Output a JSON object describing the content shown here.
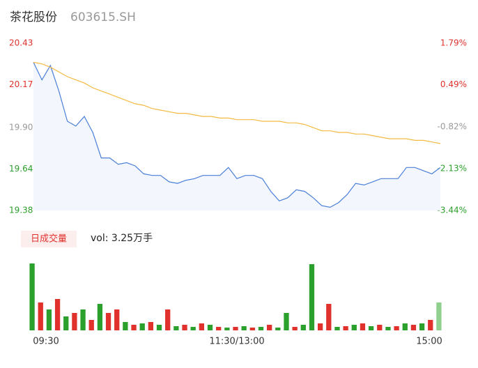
{
  "header": {
    "name": "茶花股份",
    "code": "603615.SH"
  },
  "chart_data": [
    {
      "type": "line",
      "x": [
        0,
        5,
        10,
        15,
        20,
        25,
        30,
        35,
        40,
        45,
        50,
        55,
        60,
        65,
        70,
        75,
        80,
        85,
        90,
        95,
        100,
        105,
        110,
        115,
        120,
        125,
        130,
        135,
        140,
        145,
        150,
        155,
        160,
        165,
        170,
        175,
        180,
        185,
        190,
        195,
        200,
        205,
        210,
        215,
        220,
        225,
        230,
        235,
        240
      ],
      "xlim": [
        0,
        240
      ],
      "xticks": [
        {
          "value": 0,
          "label": "09:30"
        },
        {
          "value": 120,
          "label": "11:30/13:00"
        },
        {
          "value": 240,
          "label": "15:00"
        }
      ],
      "series": [
        {
          "color": "#4a7fd8",
          "values": [
            20.31,
            20.2,
            20.29,
            20.13,
            19.94,
            19.91,
            19.97,
            19.87,
            19.71,
            19.71,
            19.67,
            19.68,
            19.66,
            19.61,
            19.6,
            19.6,
            19.56,
            19.55,
            19.57,
            19.58,
            19.6,
            19.6,
            19.6,
            19.65,
            19.58,
            19.6,
            19.6,
            19.58,
            19.5,
            19.44,
            19.46,
            19.51,
            19.5,
            19.46,
            19.41,
            19.4,
            19.43,
            19.48,
            19.55,
            19.54,
            19.56,
            19.58,
            19.58,
            19.58,
            19.65,
            19.65,
            19.63,
            19.61,
            19.65
          ]
        },
        {
          "color": "#f5b942",
          "values": [
            20.31,
            20.3,
            20.28,
            20.25,
            20.22,
            20.2,
            20.18,
            20.15,
            20.13,
            20.11,
            20.09,
            20.07,
            20.05,
            20.04,
            20.02,
            20.01,
            20.0,
            19.99,
            19.99,
            19.98,
            19.97,
            19.97,
            19.96,
            19.96,
            19.95,
            19.95,
            19.95,
            19.94,
            19.94,
            19.94,
            19.93,
            19.93,
            19.92,
            19.9,
            19.88,
            19.88,
            19.87,
            19.87,
            19.86,
            19.86,
            19.85,
            19.84,
            19.83,
            19.83,
            19.83,
            19.82,
            19.82,
            19.81,
            19.8
          ]
        }
      ],
      "ylim": [
        19.38,
        20.43
      ],
      "yticks": [
        19.38,
        19.64,
        {
          "value": 19.9,
          "label": "19.90"
        },
        20.17,
        20.43
      ],
      "ytick_colors": [
        "#2ca02c",
        "#2ca02c",
        "#999999",
        "#e0312c",
        "#e0312c"
      ],
      "y2lim": [
        -3.44,
        1.79
      ],
      "y2ticks": [
        {
          "value": -3.44,
          "label": "-3.44%"
        },
        {
          "value": -2.13,
          "label": "-2.13%"
        },
        {
          "value": -0.82,
          "label": "-0.82%"
        },
        {
          "value": 0.49,
          "label": "0.49%"
        },
        {
          "value": 1.79,
          "label": "1.79%"
        }
      ],
      "y2tick_colors": [
        "#2ca02c",
        "#2ca02c",
        "#999999",
        "#e0312c",
        "#e0312c"
      ]
    },
    {
      "type": "bar",
      "button": "日成交量",
      "title": "vol: 3.25万手",
      "values": [
        96,
        40,
        30,
        45,
        20,
        25,
        30,
        15,
        38,
        25,
        30,
        12,
        8,
        10,
        12,
        8,
        30,
        6,
        8,
        5,
        10,
        8,
        5,
        4,
        5,
        6,
        4,
        5,
        8,
        4,
        25,
        5,
        8,
        95,
        10,
        38,
        5,
        6,
        8,
        10,
        6,
        8,
        5,
        6,
        10,
        8,
        10,
        15,
        40
      ],
      "colors": [
        "#2ca02c",
        "#e0312c",
        "#2ca02c",
        "#e0312c",
        "#2ca02c",
        "#e0312c",
        "#2ca02c",
        "#e0312c",
        "#2ca02c",
        "#e0312c",
        "#e0312c",
        "#2ca02c",
        "#e0312c",
        "#2ca02c",
        "#e0312c",
        "#2ca02c",
        "#e0312c",
        "#2ca02c",
        "#e0312c",
        "#2ca02c",
        "#e0312c",
        "#2ca02c",
        "#e0312c",
        "#2ca02c",
        "#e0312c",
        "#2ca02c",
        "#e0312c",
        "#2ca02c",
        "#e0312c",
        "#2ca02c",
        "#2ca02c",
        "#e0312c",
        "#2ca02c",
        "#2ca02c",
        "#e0312c",
        "#e0312c",
        "#2ca02c",
        "#e0312c",
        "#2ca02c",
        "#e0312c",
        "#2ca02c",
        "#e0312c",
        "#2ca02c",
        "#e0312c",
        "#2ca02c",
        "#e0312c",
        "#2ca02c",
        "#e0312c",
        "#8fd08f"
      ]
    }
  ]
}
